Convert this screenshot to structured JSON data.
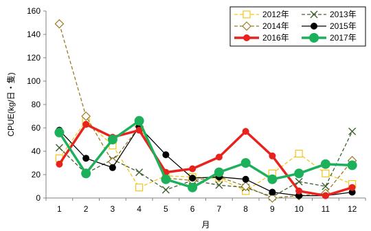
{
  "chart_data": {
    "type": "line",
    "xlabel": "月",
    "ylabel": "CPUE(kg/日・隻)",
    "categories": [
      "1",
      "2",
      "3",
      "4",
      "5",
      "6",
      "7",
      "8",
      "9",
      "10",
      "11",
      "12"
    ],
    "ylim": [
      0,
      160
    ],
    "yticks": [
      0,
      20,
      40,
      60,
      80,
      100,
      120,
      140,
      160
    ],
    "grid": false,
    "legend_position": "top-right",
    "series": [
      {
        "name": "2012年",
        "color": "#F5C518",
        "marker": "open-square",
        "dash": "dashed",
        "width": "thin",
        "values": [
          34,
          66,
          45,
          9,
          19,
          18,
          17,
          6,
          21,
          38,
          21,
          12
        ]
      },
      {
        "name": "2013年",
        "color": "#3D5F2E",
        "marker": "x",
        "dash": "dashed",
        "width": "thin",
        "values": [
          43,
          21,
          33,
          22,
          7,
          15,
          11,
          9,
          1,
          14,
          10,
          57
        ]
      },
      {
        "name": "2014年",
        "color": "#9A7A1E",
        "marker": "open-diamond",
        "dash": "dashed",
        "width": "thin",
        "values": [
          149,
          70,
          31,
          61,
          17,
          15,
          18,
          10,
          0,
          2,
          4,
          32
        ]
      },
      {
        "name": "2015年",
        "color": "#000000",
        "marker": "dot",
        "dash": "solid",
        "width": "thin",
        "values": [
          58,
          34,
          26,
          61,
          37,
          17,
          18,
          16,
          5,
          2,
          2,
          5
        ]
      },
      {
        "name": "2016年",
        "color": "#E8231E",
        "marker": "dot",
        "dash": "solid",
        "width": "thick",
        "values": [
          29,
          63,
          52,
          58,
          22,
          25,
          35,
          57,
          36,
          6,
          2,
          9
        ]
      },
      {
        "name": "2017年",
        "color": "#1DB05A",
        "marker": "big-dot",
        "dash": "solid",
        "width": "thick",
        "values": [
          56,
          21,
          50,
          66,
          16,
          9,
          22,
          30,
          16,
          21,
          29,
          28
        ]
      }
    ]
  }
}
